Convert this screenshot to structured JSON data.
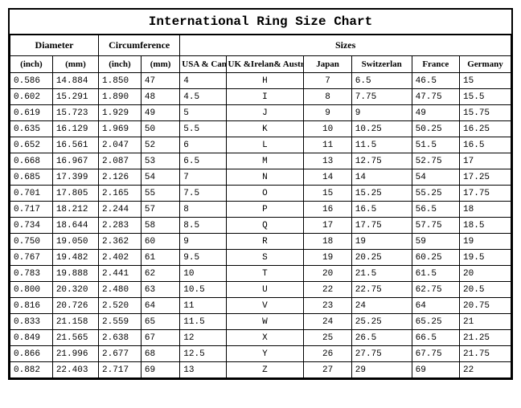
{
  "title": "International Ring Size Chart",
  "colors": {
    "border": "#000000",
    "background": "#ffffff",
    "text": "#000000"
  },
  "group_headers": {
    "diameter": "Diameter",
    "circumference": "Circumference",
    "sizes": "Sizes"
  },
  "sub_headers": {
    "diam_inch": "(inch)",
    "diam_mm": "(mm)",
    "circ_inch": "(inch)",
    "circ_mm": "(mm)",
    "usa": "USA & Canada",
    "uk": "UK &Irelan& Australian",
    "japan": "Japan",
    "swiss": "Switzerlan",
    "france": "France",
    "germany": "Germany"
  },
  "rows": [
    [
      "0.586",
      "14.884",
      "1.850",
      "47",
      "4",
      "H",
      "7",
      "6.5",
      "46.5",
      "15"
    ],
    [
      "0.602",
      "15.291",
      "1.890",
      "48",
      "4.5",
      "I",
      "8",
      "7.75",
      "47.75",
      "15.5"
    ],
    [
      "0.619",
      "15.723",
      "1.929",
      "49",
      "5",
      "J",
      "9",
      "9",
      "49",
      "15.75"
    ],
    [
      "0.635",
      "16.129",
      "1.969",
      "50",
      "5.5",
      "K",
      "10",
      "10.25",
      "50.25",
      "16.25"
    ],
    [
      "0.652",
      "16.561",
      "2.047",
      "52",
      "6",
      "L",
      "11",
      "11.5",
      "51.5",
      "16.5"
    ],
    [
      "0.668",
      "16.967",
      "2.087",
      "53",
      "6.5",
      "M",
      "13",
      "12.75",
      "52.75",
      "17"
    ],
    [
      "0.685",
      "17.399",
      "2.126",
      "54",
      "7",
      "N",
      "14",
      "14",
      "54",
      "17.25"
    ],
    [
      "0.701",
      "17.805",
      "2.165",
      "55",
      "7.5",
      "O",
      "15",
      "15.25",
      "55.25",
      "17.75"
    ],
    [
      "0.717",
      "18.212",
      "2.244",
      "57",
      "8",
      "P",
      "16",
      "16.5",
      "56.5",
      "18"
    ],
    [
      "0.734",
      "18.644",
      "2.283",
      "58",
      "8.5",
      "Q",
      "17",
      "17.75",
      "57.75",
      "18.5"
    ],
    [
      "0.750",
      "19.050",
      "2.362",
      "60",
      "9",
      "R",
      "18",
      "19",
      "59",
      "19"
    ],
    [
      "0.767",
      "19.482",
      "2.402",
      "61",
      "9.5",
      "S",
      "19",
      "20.25",
      "60.25",
      "19.5"
    ],
    [
      "0.783",
      "19.888",
      "2.441",
      "62",
      "10",
      "T",
      "20",
      "21.5",
      "61.5",
      "20"
    ],
    [
      "0.800",
      "20.320",
      "2.480",
      "63",
      "10.5",
      "U",
      "22",
      "22.75",
      "62.75",
      "20.5"
    ],
    [
      "0.816",
      "20.726",
      "2.520",
      "64",
      "11",
      "V",
      "23",
      "24",
      "64",
      "20.75"
    ],
    [
      "0.833",
      "21.158",
      "2.559",
      "65",
      "11.5",
      "W",
      "24",
      "25.25",
      "65.25",
      "21"
    ],
    [
      "0.849",
      "21.565",
      "2.638",
      "67",
      "12",
      "X",
      "25",
      "26.5",
      "66.5",
      "21.25"
    ],
    [
      "0.866",
      "21.996",
      "2.677",
      "68",
      "12.5",
      "Y",
      "26",
      "27.75",
      "67.75",
      "21.75"
    ],
    [
      "0.882",
      "22.403",
      "2.717",
      "69",
      "13",
      "Z",
      "27",
      "29",
      "69",
      "22"
    ]
  ]
}
